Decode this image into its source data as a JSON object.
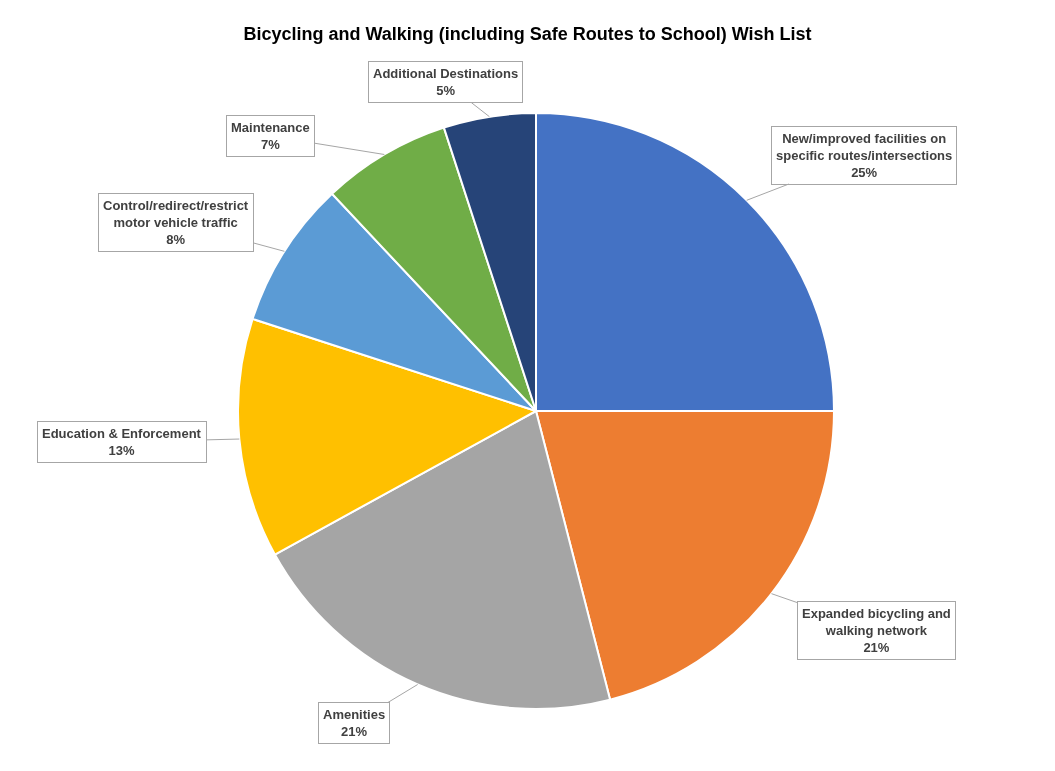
{
  "chart_data": {
    "type": "pie",
    "title": "Bicycling and Walking (including Safe Routes to School) Wish List",
    "categories": [
      "New/improved facilities on specific routes/intersections",
      "Expanded bicycling and walking network",
      "Amenities",
      "Education & Enforcement",
      "Control/redirect/restrict motor vehicle traffic",
      "Maintenance",
      "Additional Destinations"
    ],
    "values": [
      25,
      21,
      21,
      13,
      8,
      7,
      5
    ],
    "value_labels": [
      "25%",
      "21%",
      "21%",
      "13%",
      "8%",
      "7%",
      "5%"
    ],
    "colors": [
      "#4472c4",
      "#ed7d31",
      "#a5a5a5",
      "#ffc000",
      "#5b9bd5",
      "#70ad47",
      "#264478"
    ],
    "legend": false
  }
}
